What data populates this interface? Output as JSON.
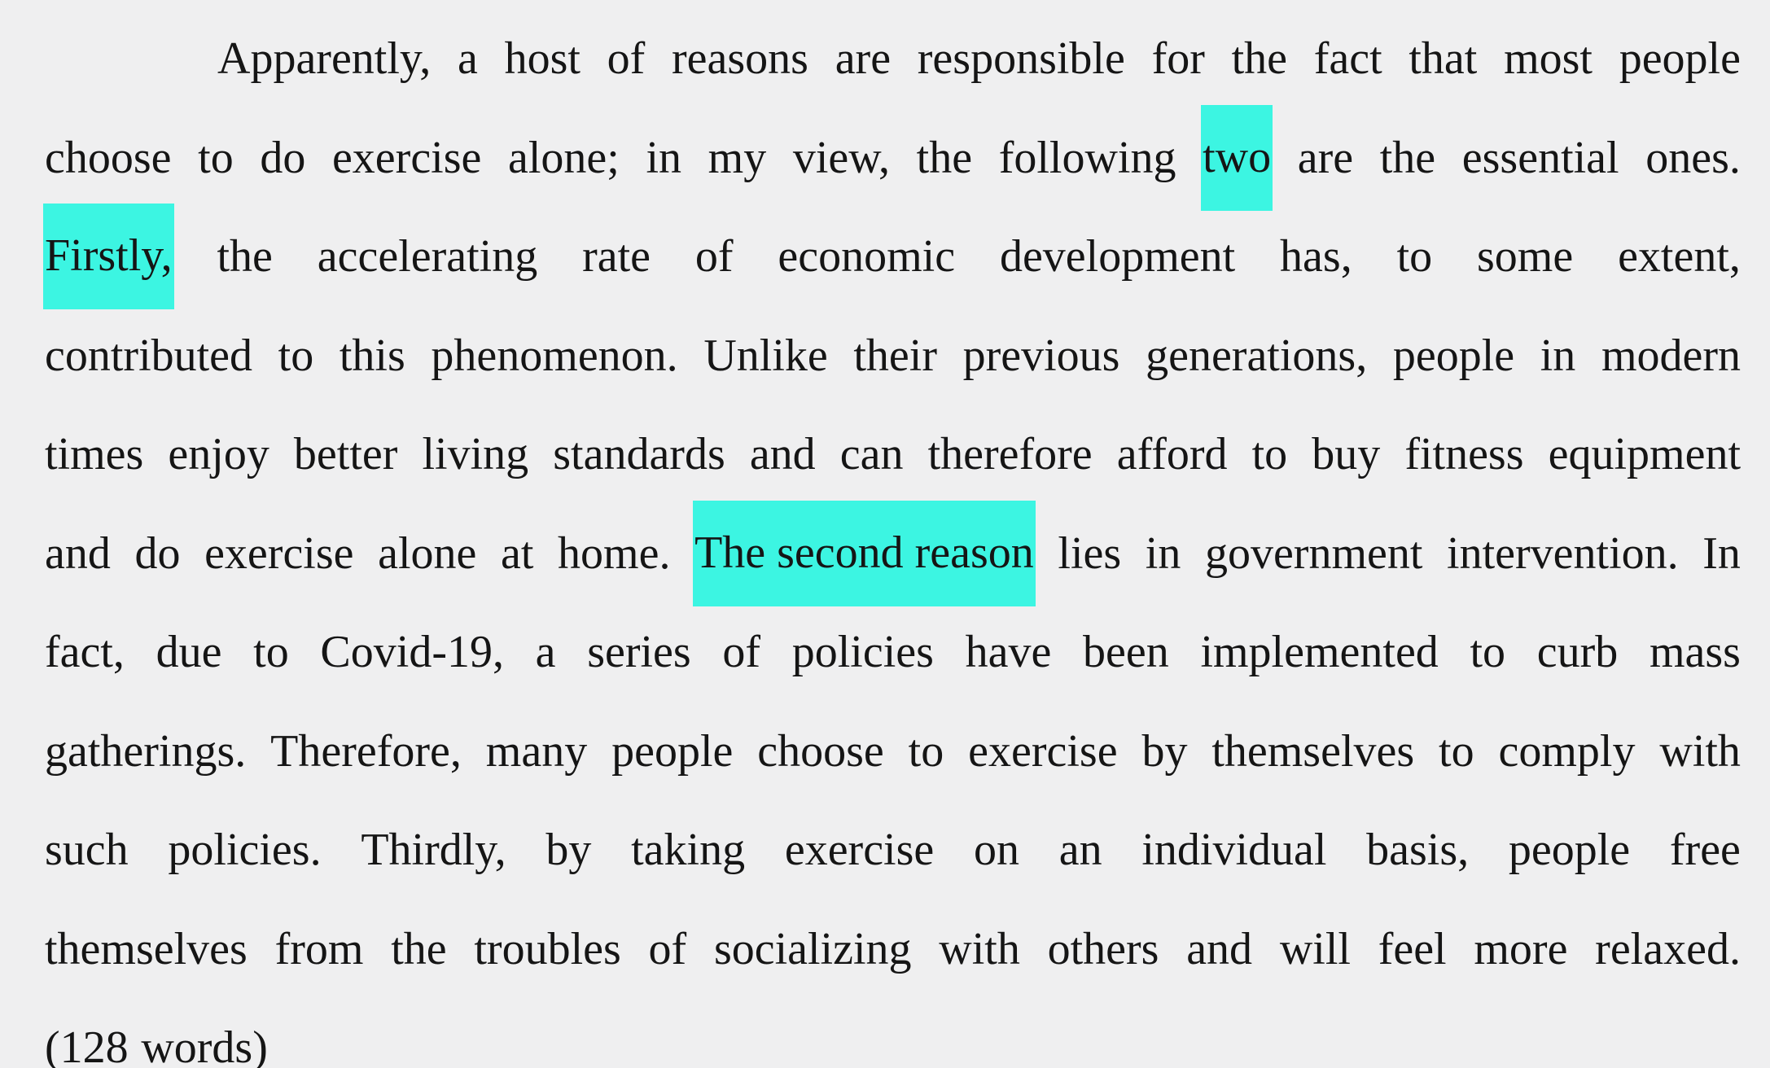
{
  "document": {
    "lines": [
      {
        "words": [
          "Apparently,",
          "a",
          "host",
          "of",
          "reasons",
          "are",
          "responsible",
          "for",
          "the",
          "fact",
          "that",
          "most",
          "people"
        ]
      },
      {
        "words": [
          "choose",
          "to",
          "do",
          "exercise",
          "alone;",
          "in",
          "my",
          "view,",
          "the",
          "following"
        ],
        "highlight": "two",
        "words_after": [
          "are",
          "the",
          "essential",
          "ones."
        ]
      },
      {
        "highlight": "Firstly,",
        "words_after": [
          "the",
          "accelerating",
          "rate",
          "of",
          "economic",
          "development",
          "has,",
          "to",
          "some",
          "extent,"
        ]
      },
      {
        "words": [
          "contributed",
          "to",
          "this",
          "phenomenon.",
          "Unlike",
          "their",
          "previous",
          "generations,",
          "people",
          "in",
          "modern"
        ]
      },
      {
        "words": [
          "times",
          "enjoy",
          "better",
          "living",
          "standards",
          "and",
          "can",
          "therefore",
          "afford",
          "to",
          "buy",
          "fitness",
          "equipment"
        ]
      },
      {
        "words": [
          "and",
          "do",
          "exercise",
          "alone",
          "at",
          "home."
        ],
        "highlight": "The second reason",
        "words_after": [
          "lies",
          "in",
          "government",
          "intervention.",
          "In"
        ]
      },
      {
        "words": [
          "fact,",
          "due",
          "to",
          "Covid-19,",
          "a",
          "series",
          "of",
          "policies",
          "have",
          "been",
          "implemented",
          "to",
          "curb",
          "mass"
        ]
      },
      {
        "words": [
          "gatherings.",
          "Therefore,",
          "many",
          "people",
          "choose",
          "to",
          "exercise",
          "by",
          "themselves",
          "to",
          "comply",
          "with"
        ]
      },
      {
        "words": [
          "such",
          "policies.",
          "Thirdly,",
          "by",
          "taking",
          "exercise",
          "on",
          "an",
          "individual",
          "basis,",
          "people",
          "free"
        ]
      },
      {
        "words": [
          "themselves",
          "from",
          "the",
          "troubles",
          "of",
          "socializing",
          "with",
          "others",
          "and",
          "will",
          "feel",
          "more",
          "relaxed."
        ]
      },
      {
        "words": [
          "(128",
          "words)"
        ]
      }
    ],
    "highlight_color": "#3cf5e2",
    "text_color": "#151515",
    "background_color": "#efeff0"
  }
}
